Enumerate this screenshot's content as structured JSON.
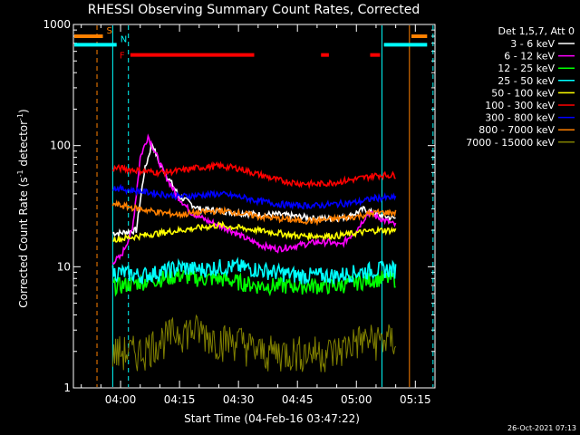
{
  "chart_data": {
    "type": "line",
    "title": "RHESSI Observing Summary Count Rates, Corrected",
    "xlabel": "Start Time (04-Feb-16 03:47:22)",
    "ylabel_main": "Corrected Count Rate (s",
    "ylabel_sup1": "-1",
    "ylabel_mid": " detector",
    "ylabel_sup2": "-1",
    "ylabel_end": ")",
    "footer": "26-Oct-2021 07:13",
    "y_scale": "log",
    "ylim": [
      1,
      1000
    ],
    "y_ticks": [
      {
        "value": 1,
        "label": "1"
      },
      {
        "value": 10,
        "label": "10"
      },
      {
        "value": 100,
        "label": "100"
      },
      {
        "value": 1000,
        "label": "1000"
      }
    ],
    "xlim_minutes": [
      -12,
      80
    ],
    "x_ticks": [
      {
        "minute": 0,
        "label": "04:00"
      },
      {
        "minute": 15,
        "label": "04:15"
      },
      {
        "minute": 30,
        "label": "04:30"
      },
      {
        "minute": 45,
        "label": "04:45"
      },
      {
        "minute": 60,
        "label": "05:00"
      },
      {
        "minute": 75,
        "label": "05:15"
      }
    ],
    "legend_header": "Det 1,5,7, Att 0",
    "series": [
      {
        "name": "3 - 6 keV",
        "color": "#ffffff",
        "values_t": [
          -2,
          0,
          4,
          6,
          8,
          10,
          12,
          15,
          20,
          25,
          30,
          35,
          40,
          45,
          50,
          55,
          58,
          62,
          65,
          70
        ],
        "values_y": [
          19,
          19,
          20,
          60,
          105,
          70,
          55,
          38,
          30,
          29,
          28,
          27,
          27,
          26,
          25,
          25,
          26,
          30,
          27,
          25
        ]
      },
      {
        "name": "6 - 12 keV",
        "color": "#ff00ff",
        "values_t": [
          -2,
          0,
          3,
          5,
          7,
          9,
          11,
          14,
          18,
          22,
          25,
          28,
          32,
          36,
          40,
          45,
          50,
          53,
          56,
          60,
          63,
          65,
          70
        ],
        "values_y": [
          11,
          12,
          20,
          80,
          120,
          85,
          60,
          40,
          28,
          24,
          22,
          20,
          17,
          15,
          14,
          15,
          16,
          16,
          15,
          20,
          28,
          26,
          22
        ]
      },
      {
        "name": "12 - 25 keV",
        "color": "#00ff00",
        "values_t": [
          -2,
          0,
          5,
          10,
          15,
          20,
          25,
          30,
          35,
          40,
          45,
          50,
          55,
          60,
          65,
          70
        ],
        "values_y": [
          7,
          7,
          7.5,
          8,
          8.5,
          8,
          8,
          7.5,
          7,
          7,
          7,
          7,
          7,
          7.5,
          8,
          8
        ]
      },
      {
        "name": "25 - 50 keV",
        "color": "#00ffff",
        "values_t": [
          -2,
          0,
          5,
          10,
          15,
          20,
          25,
          30,
          35,
          40,
          45,
          50,
          55,
          60,
          65,
          70
        ],
        "values_y": [
          9,
          9,
          8.5,
          9,
          10,
          9.5,
          10,
          10,
          9.5,
          9,
          8.5,
          8.5,
          8.5,
          9,
          9.5,
          9.5
        ]
      },
      {
        "name": "50 - 100 keV",
        "color": "#ffff00",
        "values_t": [
          -2,
          0,
          5,
          10,
          15,
          20,
          25,
          30,
          35,
          40,
          45,
          50,
          55,
          60,
          65,
          70
        ],
        "values_y": [
          17,
          17,
          18,
          19,
          20,
          21,
          22,
          21,
          20,
          19,
          18,
          18,
          18,
          19,
          20,
          20
        ]
      },
      {
        "name": "100 - 300 keV",
        "color": "#ff0000",
        "values_t": [
          -2,
          0,
          5,
          10,
          15,
          20,
          25,
          30,
          35,
          40,
          45,
          50,
          55,
          60,
          65,
          70
        ],
        "values_y": [
          65,
          65,
          62,
          60,
          62,
          66,
          68,
          65,
          58,
          52,
          49,
          48,
          50,
          53,
          57,
          57
        ]
      },
      {
        "name": "300 - 800 keV",
        "color": "#0000ff",
        "values_t": [
          -2,
          0,
          5,
          10,
          15,
          20,
          25,
          30,
          35,
          40,
          45,
          50,
          55,
          60,
          65,
          70
        ],
        "values_y": [
          45,
          44,
          42,
          40,
          38,
          39,
          40,
          38,
          35,
          33,
          32,
          32,
          33,
          34,
          37,
          37
        ]
      },
      {
        "name": "800 - 7000 keV",
        "color": "#ff8000",
        "values_t": [
          -2,
          0,
          5,
          10,
          15,
          20,
          25,
          30,
          35,
          40,
          45,
          50,
          55,
          60,
          65,
          70
        ],
        "values_y": [
          33,
          32,
          30,
          28,
          27,
          28,
          29,
          28,
          26,
          25,
          24,
          24,
          25,
          26,
          28,
          28
        ]
      },
      {
        "name": "7000 - 15000 keV",
        "color": "#808000",
        "values_t": [
          -2,
          0,
          5,
          10,
          15,
          20,
          25,
          30,
          35,
          40,
          45,
          50,
          55,
          60,
          65,
          70
        ],
        "values_y": [
          2,
          2,
          2,
          2.5,
          3,
          3,
          2.5,
          2.5,
          2,
          2,
          2,
          2,
          2,
          2.5,
          2.5,
          2.5
        ]
      }
    ],
    "status_bars": [
      {
        "label": "S",
        "color": "#ff8000",
        "segments": [
          [
            -12,
            -4.5
          ],
          [
            74,
            78
          ]
        ],
        "level": 800
      },
      {
        "label": "N",
        "color": "#00ffff",
        "segments": [
          [
            -12,
            -1
          ],
          [
            67,
            78
          ]
        ],
        "level": 680
      },
      {
        "label": "F",
        "color": "#ff0000",
        "segments": [
          [
            2.5,
            34
          ],
          [
            51,
            53
          ],
          [
            63.5,
            66
          ]
        ],
        "level": 560
      }
    ],
    "vertical_lines": [
      {
        "minute": -6,
        "color": "#ff8000",
        "dashed": true
      },
      {
        "minute": -2,
        "color": "#00ffff",
        "dashed": false
      },
      {
        "minute": 2,
        "color": "#00ffff",
        "dashed": true
      },
      {
        "minute": 66.5,
        "color": "#00ffff",
        "dashed": false
      },
      {
        "minute": 73.5,
        "color": "#ff8000",
        "dashed": false
      },
      {
        "minute": 79.5,
        "color": "#00ffff",
        "dashed": true
      }
    ],
    "grid": false,
    "legend_position": "right"
  }
}
